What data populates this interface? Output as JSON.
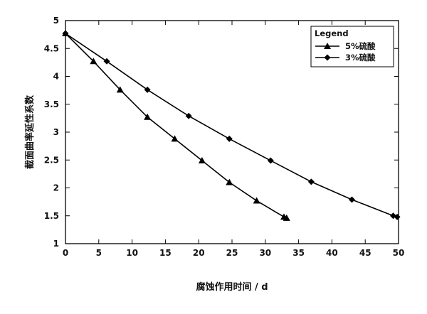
{
  "chart_data": {
    "type": "line",
    "title": "",
    "xlabel": "腐蚀作用时间 / d",
    "ylabel": "截面曲率延性系数",
    "xlim": [
      0,
      50
    ],
    "ylim": [
      1,
      5
    ],
    "xticks": [
      0,
      5,
      10,
      15,
      20,
      25,
      30,
      35,
      40,
      45,
      50
    ],
    "yticks": [
      1,
      1.5,
      2,
      2.5,
      3,
      3.5,
      4,
      4.5,
      5
    ],
    "legend": {
      "title": "Legend",
      "position": "top-right"
    },
    "grid": false,
    "series": [
      {
        "name": "5%硫酸",
        "marker": "triangle",
        "color": "#000000",
        "x": [
          0,
          4.2,
          8.2,
          12.3,
          16.4,
          20.5,
          24.6,
          28.7,
          32.8,
          33.2
        ],
        "y": [
          4.77,
          4.27,
          3.76,
          3.27,
          2.88,
          2.49,
          2.1,
          1.77,
          1.48,
          1.46
        ]
      },
      {
        "name": "3%硫酸",
        "marker": "diamond",
        "color": "#000000",
        "x": [
          0,
          6.2,
          12.3,
          18.5,
          24.6,
          30.8,
          36.9,
          43.0,
          49.2,
          49.8
        ],
        "y": [
          4.77,
          4.27,
          3.76,
          3.29,
          2.88,
          2.49,
          2.11,
          1.79,
          1.5,
          1.48
        ]
      }
    ]
  }
}
